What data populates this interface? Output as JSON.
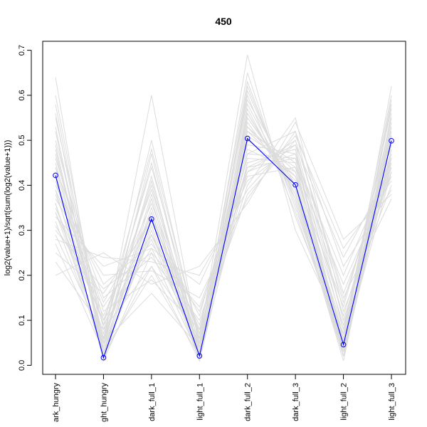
{
  "chart_data": {
    "type": "line",
    "title": "450",
    "xlabel": "",
    "ylabel": "log2(value+1)/sqrt(sum(log2(value+1)))",
    "categories": [
      "dark_hungry",
      "light_hungry",
      "dark_full_1",
      "light_full_1",
      "dark_full_2",
      "dark_full_3",
      "light_full_2",
      "light_full_3"
    ],
    "tick_labels": [
      "ark_hungry",
      "ght_hungry",
      "dark_full_1",
      "light_full_1",
      "dark_full_2",
      "dark_full_3",
      "light_full_2",
      "light_full_3"
    ],
    "ylim": [
      -0.02,
      0.72
    ],
    "yticks": [
      0.0,
      0.1,
      0.2,
      0.3,
      0.4,
      0.5,
      0.6,
      0.7
    ],
    "ytick_labels": [
      "0.0",
      "0.1",
      "0.2",
      "0.3",
      "0.4",
      "0.5",
      "0.6",
      "0.7"
    ],
    "highlight_series": {
      "values": [
        0.422,
        0.017,
        0.325,
        0.021,
        0.504,
        0.401,
        0.046,
        0.499
      ],
      "color": "#0000ff",
      "marker": "open-circle"
    },
    "background_series_color": "#dcdcdc",
    "background_series": [
      {
        "values": [
          0.64,
          0.01,
          0.25,
          0.02,
          0.43,
          0.47,
          0.04,
          0.43
        ]
      },
      {
        "values": [
          0.6,
          0.05,
          0.16,
          0.04,
          0.47,
          0.52,
          0.1,
          0.43
        ]
      },
      {
        "values": [
          0.58,
          0.03,
          0.2,
          0.02,
          0.52,
          0.45,
          0.03,
          0.46
        ]
      },
      {
        "values": [
          0.55,
          0.08,
          0.22,
          0.06,
          0.4,
          0.55,
          0.12,
          0.4
        ]
      },
      {
        "values": [
          0.53,
          0.02,
          0.3,
          0.01,
          0.55,
          0.4,
          0.02,
          0.5
        ]
      },
      {
        "values": [
          0.5,
          0.1,
          0.28,
          0.03,
          0.45,
          0.48,
          0.08,
          0.55
        ]
      },
      {
        "values": [
          0.48,
          0.04,
          0.35,
          0.05,
          0.58,
          0.38,
          0.05,
          0.52
        ]
      },
      {
        "values": [
          0.46,
          0.12,
          0.19,
          0.08,
          0.38,
          0.5,
          0.15,
          0.37
        ]
      },
      {
        "values": [
          0.45,
          0.06,
          0.4,
          0.02,
          0.62,
          0.36,
          0.02,
          0.56
        ]
      },
      {
        "values": [
          0.44,
          0.15,
          0.24,
          0.1,
          0.42,
          0.44,
          0.18,
          0.42
        ]
      },
      {
        "values": [
          0.43,
          0.01,
          0.33,
          0.01,
          0.5,
          0.42,
          0.04,
          0.48
        ]
      },
      {
        "values": [
          0.41,
          0.07,
          0.45,
          0.04,
          0.65,
          0.33,
          0.06,
          0.58
        ]
      },
      {
        "values": [
          0.4,
          0.18,
          0.27,
          0.12,
          0.44,
          0.46,
          0.2,
          0.45
        ]
      },
      {
        "values": [
          0.39,
          0.03,
          0.38,
          0.03,
          0.54,
          0.39,
          0.03,
          0.53
        ]
      },
      {
        "values": [
          0.38,
          0.09,
          0.48,
          0.06,
          0.69,
          0.3,
          0.07,
          0.6
        ]
      },
      {
        "values": [
          0.37,
          0.2,
          0.21,
          0.15,
          0.37,
          0.52,
          0.22,
          0.39
        ]
      },
      {
        "values": [
          0.36,
          0.02,
          0.31,
          0.02,
          0.57,
          0.37,
          0.01,
          0.51
        ]
      },
      {
        "values": [
          0.35,
          0.11,
          0.36,
          0.07,
          0.48,
          0.43,
          0.09,
          0.47
        ]
      },
      {
        "values": [
          0.34,
          0.05,
          0.6,
          0.04,
          0.6,
          0.34,
          0.04,
          0.62
        ]
      },
      {
        "values": [
          0.33,
          0.22,
          0.26,
          0.18,
          0.41,
          0.49,
          0.24,
          0.44
        ]
      },
      {
        "values": [
          0.32,
          0.04,
          0.42,
          0.02,
          0.53,
          0.41,
          0.03,
          0.54
        ]
      },
      {
        "values": [
          0.31,
          0.13,
          0.29,
          0.09,
          0.46,
          0.45,
          0.11,
          0.46
        ]
      },
      {
        "values": [
          0.29,
          0.06,
          0.5,
          0.05,
          0.63,
          0.35,
          0.05,
          0.59
        ]
      },
      {
        "values": [
          0.28,
          0.24,
          0.23,
          0.2,
          0.39,
          0.51,
          0.26,
          0.41
        ]
      },
      {
        "values": [
          0.27,
          0.03,
          0.34,
          0.03,
          0.56,
          0.38,
          0.02,
          0.52
        ]
      },
      {
        "values": [
          0.25,
          0.16,
          0.32,
          0.11,
          0.49,
          0.47,
          0.14,
          0.49
        ]
      },
      {
        "values": [
          0.23,
          0.08,
          0.44,
          0.07,
          0.59,
          0.4,
          0.08,
          0.57
        ]
      },
      {
        "values": [
          0.2,
          0.25,
          0.18,
          0.22,
          0.36,
          0.54,
          0.28,
          0.38
        ]
      },
      {
        "values": [
          0.52,
          0.02,
          0.37,
          0.01,
          0.51,
          0.44,
          0.06,
          0.48
        ]
      },
      {
        "values": [
          0.47,
          0.05,
          0.41,
          0.03,
          0.56,
          0.39,
          0.04,
          0.55
        ]
      },
      {
        "values": [
          0.42,
          0.09,
          0.26,
          0.05,
          0.44,
          0.49,
          0.1,
          0.44
        ]
      },
      {
        "values": [
          0.39,
          0.14,
          0.33,
          0.08,
          0.52,
          0.42,
          0.13,
          0.5
        ]
      },
      {
        "values": [
          0.36,
          0.04,
          0.47,
          0.02,
          0.61,
          0.37,
          0.03,
          0.58
        ]
      },
      {
        "values": [
          0.49,
          0.03,
          0.29,
          0.04,
          0.47,
          0.46,
          0.05,
          0.45
        ]
      },
      {
        "values": [
          0.34,
          0.1,
          0.39,
          0.06,
          0.55,
          0.4,
          0.07,
          0.53
        ]
      },
      {
        "values": [
          0.3,
          0.17,
          0.25,
          0.13,
          0.43,
          0.5,
          0.16,
          0.43
        ]
      },
      {
        "values": [
          0.56,
          0.02,
          0.22,
          0.01,
          0.45,
          0.48,
          0.02,
          0.47
        ]
      },
      {
        "values": [
          0.44,
          0.06,
          0.34,
          0.04,
          0.53,
          0.43,
          0.05,
          0.51
        ]
      }
    ],
    "grid": false,
    "legend": "none"
  }
}
